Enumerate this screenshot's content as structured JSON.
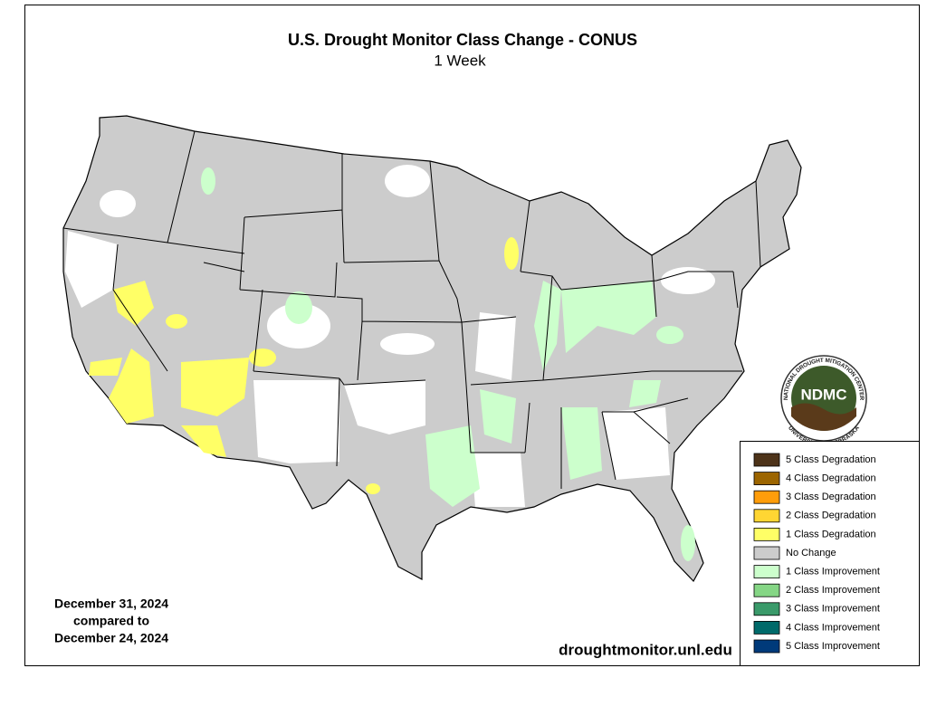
{
  "header": {
    "title": "U.S. Drought Monitor Class Change - CONUS",
    "subtitle": "1 Week"
  },
  "dates": [
    "December 31, 2024",
    "compared to",
    "December 24, 2024"
  ],
  "url": "droughtmonitor.unl.edu",
  "logo": {
    "acronym": "NDMC",
    "ring_top": "NATIONAL DROUGHT MITIGATION CENTER",
    "ring_bottom": "UNIVERSITY OF NEBRASKA"
  },
  "legend": [
    {
      "label": "5 Class Degradation",
      "color": "#4d3319"
    },
    {
      "label": "4 Class Degradation",
      "color": "#9c6500"
    },
    {
      "label": "3 Class Degradation",
      "color": "#ff9d0a"
    },
    {
      "label": "2 Class Degradation",
      "color": "#ffd633"
    },
    {
      "label": "1 Class Degradation",
      "color": "#ffff66"
    },
    {
      "label": "No Change",
      "color": "#cccccc"
    },
    {
      "label": "1 Class Improvement",
      "color": "#ccffcc"
    },
    {
      "label": "2 Class Improvement",
      "color": "#85d685"
    },
    {
      "label": "3 Class Improvement",
      "color": "#3a9a6a"
    },
    {
      "label": "4 Class Improvement",
      "color": "#006a6a"
    },
    {
      "label": "5 Class Improvement",
      "color": "#003a7a"
    }
  ]
}
